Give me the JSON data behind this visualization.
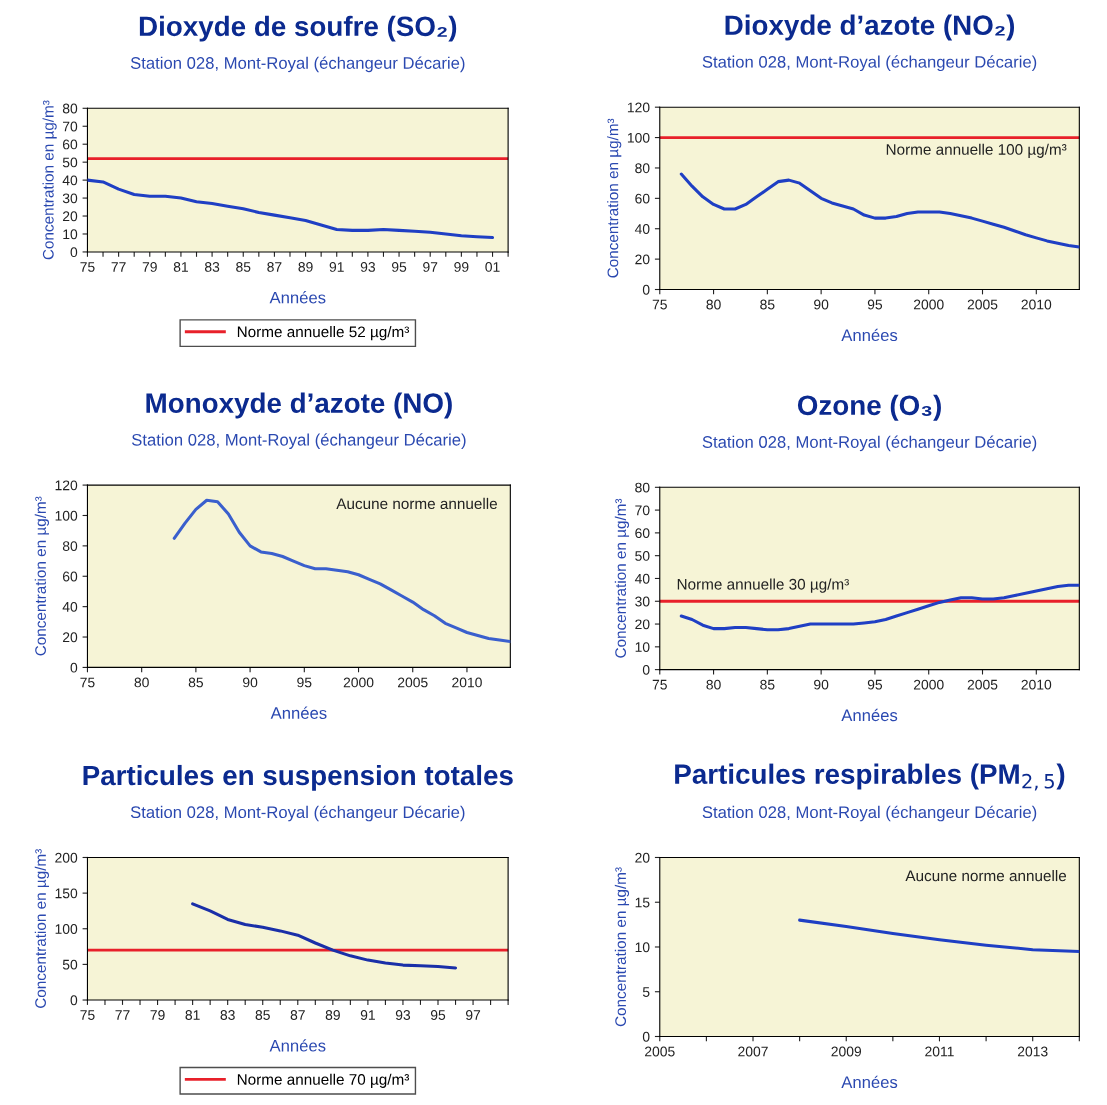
{
  "chart_data": [
    {
      "type": "line",
      "title": "Dioxyde de soufre (SO₂)",
      "subtitle": "Station 028, Mont-Royal (échangeur Décarie)",
      "xlabel": "Années",
      "ylabel": "Concentration en µg/m³",
      "color": "#1f3fc4",
      "x": [
        1975,
        1976,
        1977,
        1978,
        1979,
        1980,
        1981,
        1982,
        1983,
        1984,
        1985,
        1986,
        1987,
        1988,
        1989,
        1990,
        1991,
        1992,
        1993,
        1994,
        1995,
        1996,
        1997,
        1998,
        1999,
        2000,
        2001
      ],
      "values": [
        40,
        39,
        35,
        32,
        31,
        31,
        30,
        28,
        27,
        25.5,
        24,
        22,
        20.5,
        19,
        17.5,
        15,
        12.5,
        12,
        12,
        12.5,
        12,
        11.5,
        11,
        10,
        9,
        8.5,
        8
      ],
      "xlim": [
        1975,
        2002
      ],
      "xticks": [
        {
          "value": 1975,
          "label": "75"
        },
        {
          "value": 1976,
          "label": null
        },
        {
          "value": 1977,
          "label": "77"
        },
        {
          "value": 1978,
          "label": null
        },
        {
          "value": 1979,
          "label": "79"
        },
        {
          "value": 1980,
          "label": null
        },
        {
          "value": 1981,
          "label": "81"
        },
        {
          "value": 1982,
          "label": null
        },
        {
          "value": 1983,
          "label": "83"
        },
        {
          "value": 1984,
          "label": null
        },
        {
          "value": 1985,
          "label": "85"
        },
        {
          "value": 1986,
          "label": null
        },
        {
          "value": 1987,
          "label": "87"
        },
        {
          "value": 1988,
          "label": null
        },
        {
          "value": 1989,
          "label": "89"
        },
        {
          "value": 1990,
          "label": null
        },
        {
          "value": 1991,
          "label": "91"
        },
        {
          "value": 1992,
          "label": null
        },
        {
          "value": 1993,
          "label": "93"
        },
        {
          "value": 1994,
          "label": null
        },
        {
          "value": 1995,
          "label": "95"
        },
        {
          "value": 1996,
          "label": null
        },
        {
          "value": 1997,
          "label": "97"
        },
        {
          "value": 1998,
          "label": null
        },
        {
          "value": 1999,
          "label": "99"
        },
        {
          "value": 2000,
          "label": null
        },
        {
          "value": 2001,
          "label": "01"
        },
        {
          "value": 2002,
          "label": null
        }
      ],
      "ylim": [
        0,
        80
      ],
      "yticks": [
        0,
        10,
        20,
        30,
        40,
        50,
        60,
        70,
        80
      ],
      "ref_lines": [
        {
          "axis": "y",
          "value": 52,
          "label": "Norme annuelle 52 µg/m³",
          "color": "#e8202a"
        }
      ],
      "legend": "bottom"
    },
    {
      "type": "line",
      "title": "Dioxyde d’azote (NO₂)",
      "subtitle": "Station 028, Mont-Royal (échangeur Décarie)",
      "xlabel": "Années",
      "ylabel": "Concentration en µg/m³",
      "color": "#1f3fc4",
      "x": [
        1977,
        1978,
        1979,
        1980,
        1981,
        1982,
        1983,
        1984,
        1985,
        1986,
        1987,
        1988,
        1989,
        1990,
        1991,
        1992,
        1993,
        1994,
        1995,
        1996,
        1997,
        1998,
        1999,
        2000,
        2001,
        2002,
        2003,
        2004,
        2005,
        2006,
        2007,
        2008,
        2009,
        2010,
        2011,
        2012,
        2013,
        2014
      ],
      "values": [
        76,
        68,
        61,
        56,
        53,
        53,
        56,
        61,
        66,
        71,
        72,
        70,
        65,
        60,
        57,
        55,
        53,
        49,
        47,
        47,
        48,
        50,
        51,
        51,
        51,
        50,
        48.5,
        47,
        45,
        43,
        41,
        38.5,
        36,
        34,
        32,
        30.5,
        29,
        28
      ],
      "xlim": [
        1975,
        2014
      ],
      "xticks": [
        {
          "value": 1975,
          "label": "75"
        },
        {
          "value": 1980,
          "label": "80"
        },
        {
          "value": 1985,
          "label": "85"
        },
        {
          "value": 1990,
          "label": "90"
        },
        {
          "value": 1995,
          "label": "95"
        },
        2000,
        2005,
        2010
      ],
      "ylim": [
        0,
        120
      ],
      "yticks": [
        0,
        20,
        40,
        60,
        80,
        100,
        120
      ],
      "ref_lines": [
        {
          "axis": "y",
          "value": 100,
          "color": "#e8202a"
        }
      ],
      "annotations": [
        "Norme annuelle 100 µg/m³"
      ]
    },
    {
      "type": "line",
      "title": "Monoxyde d’azote (NO)",
      "subtitle": "Station 028, Mont-Royal (échangeur Décarie)",
      "xlabel": "Années",
      "ylabel": "Concentration en µg/m³",
      "color": "#3a5fcd",
      "x": [
        1983,
        1984,
        1985,
        1986,
        1987,
        1988,
        1989,
        1990,
        1991,
        1992,
        1993,
        1994,
        1995,
        1996,
        1997,
        1998,
        1999,
        2000,
        2001,
        2002,
        2003,
        2004,
        2005,
        2006,
        2007,
        2008,
        2009,
        2010,
        2011,
        2012,
        2013,
        2014
      ],
      "values": [
        85,
        95,
        104,
        110,
        109,
        101,
        89,
        80,
        76,
        75,
        73,
        70,
        67,
        65,
        65,
        64,
        63,
        61,
        58,
        55,
        51,
        47,
        43,
        38,
        34,
        29,
        26,
        23,
        21,
        19,
        18,
        17
      ],
      "xlim": [
        1975,
        2014
      ],
      "xticks": [
        {
          "value": 1975,
          "label": "75"
        },
        {
          "value": 1980,
          "label": "80"
        },
        {
          "value": 1985,
          "label": "85"
        },
        {
          "value": 1990,
          "label": "90"
        },
        {
          "value": 1995,
          "label": "95"
        },
        2000,
        2005,
        2010
      ],
      "ylim": [
        0,
        120
      ],
      "yticks": [
        0,
        20,
        40,
        60,
        80,
        100,
        120
      ],
      "annotations": [
        "Aucune norme annuelle"
      ]
    },
    {
      "type": "line",
      "title": "Ozone (O₃)",
      "subtitle": "Station 028, Mont-Royal (échangeur Décarie)",
      "xlabel": "Années",
      "ylabel": "Concentration en µg/m³",
      "color": "#1f3fc4",
      "x": [
        1977,
        1978,
        1979,
        1980,
        1981,
        1982,
        1983,
        1984,
        1985,
        1986,
        1987,
        1988,
        1989,
        1990,
        1991,
        1992,
        1993,
        1994,
        1995,
        1996,
        1997,
        1998,
        1999,
        2000,
        2001,
        2002,
        2003,
        2004,
        2005,
        2006,
        2007,
        2008,
        2009,
        2010,
        2011,
        2012,
        2013,
        2014
      ],
      "values": [
        23.5,
        22,
        19.5,
        18,
        18,
        18.5,
        18.5,
        18,
        17.5,
        17.5,
        18,
        19,
        20,
        20,
        20,
        20,
        20,
        20.5,
        21,
        22,
        23.5,
        25,
        26.5,
        28,
        29.5,
        30.5,
        31.5,
        31.5,
        31,
        31,
        31.5,
        32.5,
        33.5,
        34.5,
        35.5,
        36.5,
        37,
        37
      ],
      "xlim": [
        1975,
        2014
      ],
      "xticks": [
        {
          "value": 1975,
          "label": "75"
        },
        {
          "value": 1980,
          "label": "80"
        },
        {
          "value": 1985,
          "label": "85"
        },
        {
          "value": 1990,
          "label": "90"
        },
        {
          "value": 1995,
          "label": "95"
        },
        2000,
        2005,
        2010
      ],
      "ylim": [
        0,
        80
      ],
      "yticks": [
        0,
        10,
        20,
        30,
        40,
        50,
        60,
        70,
        80
      ],
      "ref_lines": [
        {
          "axis": "y",
          "value": 30,
          "color": "#e8202a"
        }
      ],
      "annotations": [
        "Norme annuelle 30 µg/m³"
      ]
    },
    {
      "type": "line",
      "title": "Particules en suspension totales",
      "subtitle": "Station 028, Mont-Royal (échangeur Décarie)",
      "xlabel": "Années",
      "ylabel": "Concentration en µg/m³",
      "color": "#1a2fa8",
      "x": [
        1981,
        1982,
        1983,
        1984,
        1985,
        1986,
        1987,
        1988,
        1989,
        1990,
        1991,
        1992,
        1993,
        1994,
        1995,
        1996
      ],
      "values": [
        135,
        125,
        113,
        106,
        102,
        97,
        91,
        80,
        70,
        62,
        56,
        52,
        49,
        48,
        47,
        45
      ],
      "xlim": [
        1975,
        1999
      ],
      "xticks": [
        {
          "value": 1975,
          "label": "75"
        },
        {
          "value": 1976,
          "label": null
        },
        {
          "value": 1977,
          "label": "77"
        },
        {
          "value": 1978,
          "label": null
        },
        {
          "value": 1979,
          "label": "79"
        },
        {
          "value": 1980,
          "label": null
        },
        {
          "value": 1981,
          "label": "81"
        },
        {
          "value": 1982,
          "label": null
        },
        {
          "value": 1983,
          "label": "83"
        },
        {
          "value": 1984,
          "label": null
        },
        {
          "value": 1985,
          "label": "85"
        },
        {
          "value": 1986,
          "label": null
        },
        {
          "value": 1987,
          "label": "87"
        },
        {
          "value": 1988,
          "label": null
        },
        {
          "value": 1989,
          "label": "89"
        },
        {
          "value": 1990,
          "label": null
        },
        {
          "value": 1991,
          "label": "91"
        },
        {
          "value": 1992,
          "label": null
        },
        {
          "value": 1993,
          "label": "93"
        },
        {
          "value": 1994,
          "label": null
        },
        {
          "value": 1995,
          "label": "95"
        },
        {
          "value": 1996,
          "label": null
        },
        {
          "value": 1997,
          "label": "97"
        },
        {
          "value": 1998,
          "label": null
        },
        {
          "value": 1999,
          "label": null
        }
      ],
      "ylim": [
        0,
        200
      ],
      "yticks": [
        0,
        50,
        100,
        150,
        200
      ],
      "ref_lines": [
        {
          "axis": "y",
          "value": 70,
          "label": "Norme annuelle 70 µg/m³",
          "color": "#e8202a"
        }
      ],
      "legend": "bottom"
    },
    {
      "type": "line",
      "title": "Particules respirables (PM$_{2,5}$)",
      "subtitle": "Station 028, Mont-Royal (échangeur Décarie)",
      "xlabel": "Années",
      "ylabel": "Concentration en µg/m³",
      "color": "#1f3fc4",
      "x": [
        2008,
        2009,
        2010,
        2011,
        2012,
        2013,
        2014
      ],
      "values": [
        13,
        12.3,
        11.5,
        10.8,
        10.2,
        9.7,
        9.5
      ],
      "xlim": [
        2005,
        2014
      ],
      "xticks": [
        2005,
        {
          "value": 2006,
          "label": null
        },
        2007,
        {
          "value": 2008,
          "label": null
        },
        2009,
        {
          "value": 2010,
          "label": null
        },
        2011,
        {
          "value": 2012,
          "label": null
        },
        2013,
        {
          "value": 2014,
          "label": null
        }
      ],
      "ylim": [
        0,
        20
      ],
      "yticks": [
        0,
        5,
        10,
        15,
        20
      ],
      "annotations": [
        "Aucune norme annuelle"
      ]
    }
  ]
}
